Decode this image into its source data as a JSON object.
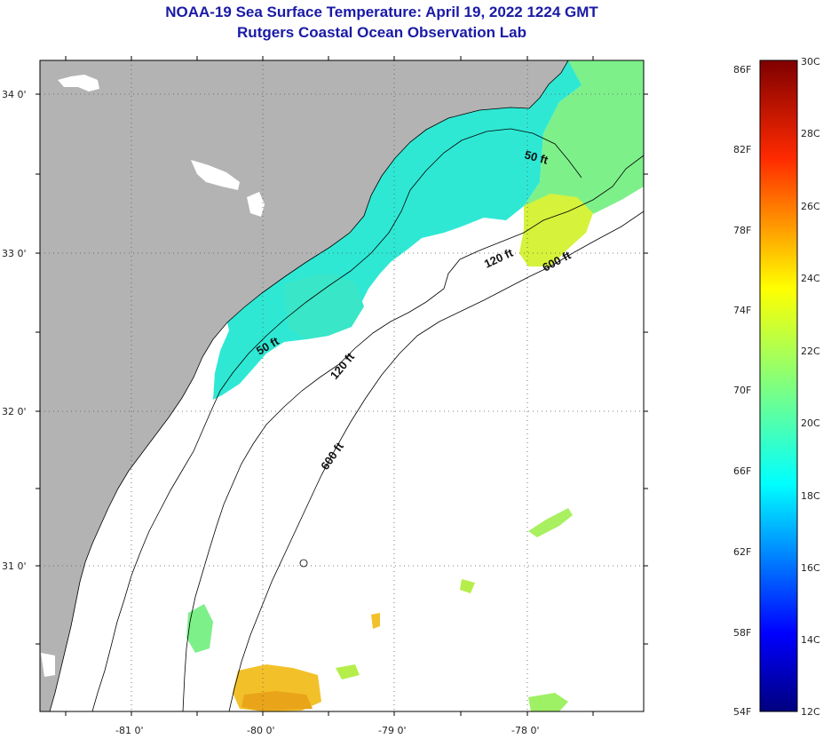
{
  "title": "NOAA-19 Sea Surface Temperature:  April 19, 2022 1224 GMT",
  "subtitle": "Rutgers Coastal Ocean Observation Lab",
  "latitude_labels": [
    "34 0'",
    "33 0'",
    "32 0'",
    "31 0'"
  ],
  "longitude_labels": [
    "-81 0'",
    "-80 0'",
    "-79 0'",
    "-78 0'"
  ],
  "contour_labels": [
    {
      "id": "c50a",
      "text": "50 ft"
    },
    {
      "id": "c50b",
      "text": "50 ft"
    },
    {
      "id": "c120a",
      "text": "120 ft"
    },
    {
      "id": "c120b",
      "text": "120 ft"
    },
    {
      "id": "c600a",
      "text": "600 ft"
    },
    {
      "id": "c600b",
      "text": "600 ft"
    }
  ],
  "colorbar": {
    "fahrenheit": [
      "86F",
      "82F",
      "78F",
      "74F",
      "70F",
      "66F",
      "62F",
      "58F",
      "54F"
    ],
    "celsius": [
      "30C",
      "28C",
      "26C",
      "24C",
      "22C",
      "20C",
      "18C",
      "16C",
      "14C",
      "12C"
    ],
    "colors": [
      "#00007f",
      "#0000ff",
      "#007fff",
      "#00ffff",
      "#7fff7f",
      "#ffff00",
      "#ff7f00",
      "#ff0000",
      "#7f0000"
    ]
  },
  "land_color": "#b3b3b3"
}
